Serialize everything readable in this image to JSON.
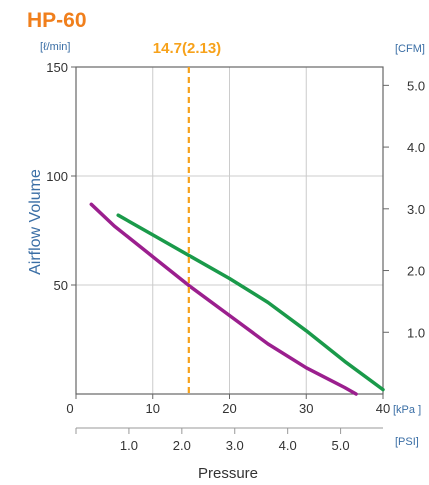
{
  "chart_data": {
    "type": "line",
    "title": "HP-60",
    "ylabel": "Airflow Volume",
    "xlabel": "Pressure",
    "y_left_unit": "[ℓ/min]",
    "y_right_unit": "[CFM]",
    "x_top_unit": "[kPa ]",
    "x_bottom_unit": "[PSI]",
    "xlim": [
      0,
      40
    ],
    "ylim": [
      0,
      150
    ],
    "x_ticks_kpa": [
      0,
      10,
      20,
      30,
      40
    ],
    "x_ticks_psi": [
      1.0,
      2.0,
      3.0,
      4.0,
      5.0
    ],
    "y_ticks_lpm": [
      50,
      100,
      150
    ],
    "y_ticks_cfm": [
      1.0,
      2.0,
      3.0,
      4.0,
      5.0
    ],
    "grid": true,
    "marker": {
      "x": 14.7,
      "label": "14.7(2.13)",
      "color": "#f7a21b"
    },
    "series": [
      {
        "color": "#1a9a4a",
        "x": [
          5.5,
          10,
          15,
          20,
          25,
          30,
          35,
          40
        ],
        "y": [
          82,
          73,
          63,
          53,
          42,
          29,
          15,
          2
        ]
      },
      {
        "color": "#9b1f8e",
        "x": [
          2,
          5,
          10,
          15,
          20,
          25,
          30,
          35,
          36.5
        ],
        "y": [
          87,
          77,
          63,
          49,
          36,
          23,
          12,
          3,
          0
        ]
      }
    ],
    "colors": {
      "title": "#f07f1c",
      "axis_label": "#3a6ea5",
      "tick": "#333333",
      "grid": "#cccccc",
      "frame": "#666666"
    }
  }
}
